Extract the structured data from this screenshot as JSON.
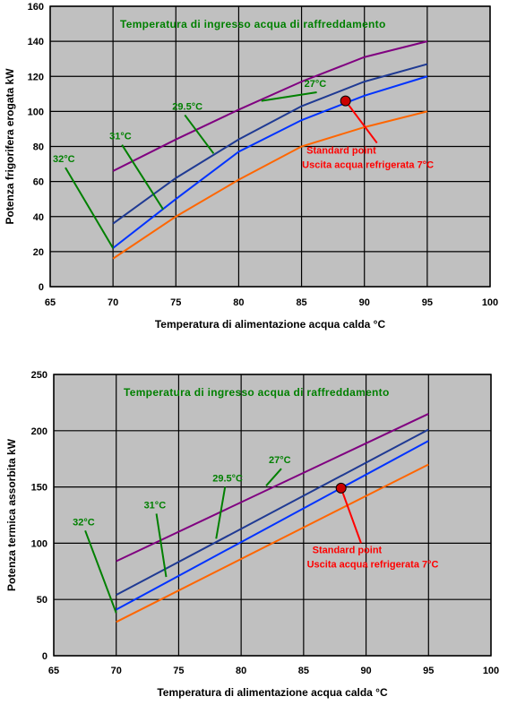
{
  "chart_data": [
    {
      "type": "line",
      "title": "Temperatura di ingresso acqua di raffreddamento",
      "xlabel": "Temperatura di alimentazione acqua calda °C",
      "ylabel": "Potenza frigorifera erogata kW",
      "xlim": [
        65,
        100
      ],
      "ylim": [
        0,
        160
      ],
      "xticks": [
        65,
        70,
        75,
        80,
        85,
        90,
        95,
        100
      ],
      "yticks": [
        0,
        20,
        40,
        60,
        80,
        100,
        120,
        140,
        160
      ],
      "grid": true,
      "series": [
        {
          "name": "27°C",
          "color": "#800080",
          "x": [
            70,
            75,
            80,
            85,
            90,
            95
          ],
          "y": [
            66,
            84,
            101,
            117,
            131,
            140
          ]
        },
        {
          "name": "29.5°C",
          "color": "#1F3A93",
          "x": [
            70,
            75,
            80,
            85,
            90,
            95
          ],
          "y": [
            36,
            62,
            84,
            103,
            117,
            127
          ]
        },
        {
          "name": "31°C",
          "color": "#0033FF",
          "x": [
            70,
            75,
            80,
            85,
            90,
            95
          ],
          "y": [
            22,
            50,
            77,
            95,
            109,
            120
          ]
        },
        {
          "name": "32°C",
          "color": "#FF6600",
          "x": [
            70,
            75,
            80,
            85,
            90,
            95
          ],
          "y": [
            16,
            40,
            61,
            80,
            91,
            100
          ]
        }
      ],
      "series_labels": [
        {
          "text": "27°C",
          "x": 85.5,
          "y": 114,
          "tx": 81.8,
          "ty": 106
        },
        {
          "text": "29.5°C",
          "x": 75,
          "y": 101,
          "tx": 78,
          "ty": 76
        },
        {
          "text": "31°C",
          "x": 70,
          "y": 84,
          "tx": 74,
          "ty": 44
        },
        {
          "text": "32°C",
          "x": 65.5,
          "y": 71,
          "tx": 70,
          "ty": 22
        }
      ],
      "standard_point": {
        "x": 88.5,
        "y": 106,
        "line_end": {
          "x": 91,
          "y": 82
        },
        "label_line1": "Standard point",
        "label_line2": "Uscita acqua refrigerata 7°C",
        "label_x": 85.4,
        "label_y": 76
      }
    },
    {
      "type": "line",
      "title": "Temperatura di ingresso acqua di raffreddamento",
      "xlabel": "Temperatura di alimentazione acqua calda °C",
      "ylabel": "Potenza termica assorbita kW",
      "xlim": [
        65,
        100
      ],
      "ylim": [
        0,
        250
      ],
      "xticks": [
        65,
        70,
        75,
        80,
        85,
        90,
        95,
        100
      ],
      "yticks": [
        0,
        50,
        100,
        150,
        200,
        250
      ],
      "grid": true,
      "series": [
        {
          "name": "27°C",
          "color": "#800080",
          "x": [
            70,
            95
          ],
          "y": [
            84,
            215
          ]
        },
        {
          "name": "29.5°C",
          "color": "#1F3A93",
          "x": [
            70,
            95
          ],
          "y": [
            54,
            201
          ]
        },
        {
          "name": "31°C",
          "color": "#0033FF",
          "x": [
            70,
            95
          ],
          "y": [
            41,
            191
          ]
        },
        {
          "name": "32°C",
          "color": "#FF6600",
          "x": [
            70,
            95
          ],
          "y": [
            30,
            170
          ]
        }
      ],
      "series_labels": [
        {
          "text": "27°C",
          "x": 82.5,
          "y": 171,
          "tx": 82,
          "ty": 151
        },
        {
          "text": "29.5°C",
          "x": 78,
          "y": 155,
          "tx": 78,
          "ty": 104
        },
        {
          "text": "31°C",
          "x": 72.5,
          "y": 131,
          "tx": 74,
          "ty": 70
        },
        {
          "text": "32°C",
          "x": 66.8,
          "y": 116,
          "tx": 70,
          "ty": 38
        }
      ],
      "standard_point": {
        "x": 88,
        "y": 149,
        "line_end": {
          "x": 89.6,
          "y": 100
        },
        "label_line1": "Standard point",
        "label_line2": "Uscita acqua refrigerata 7°C",
        "label_x": 85.7,
        "label_y": 91
      }
    }
  ]
}
